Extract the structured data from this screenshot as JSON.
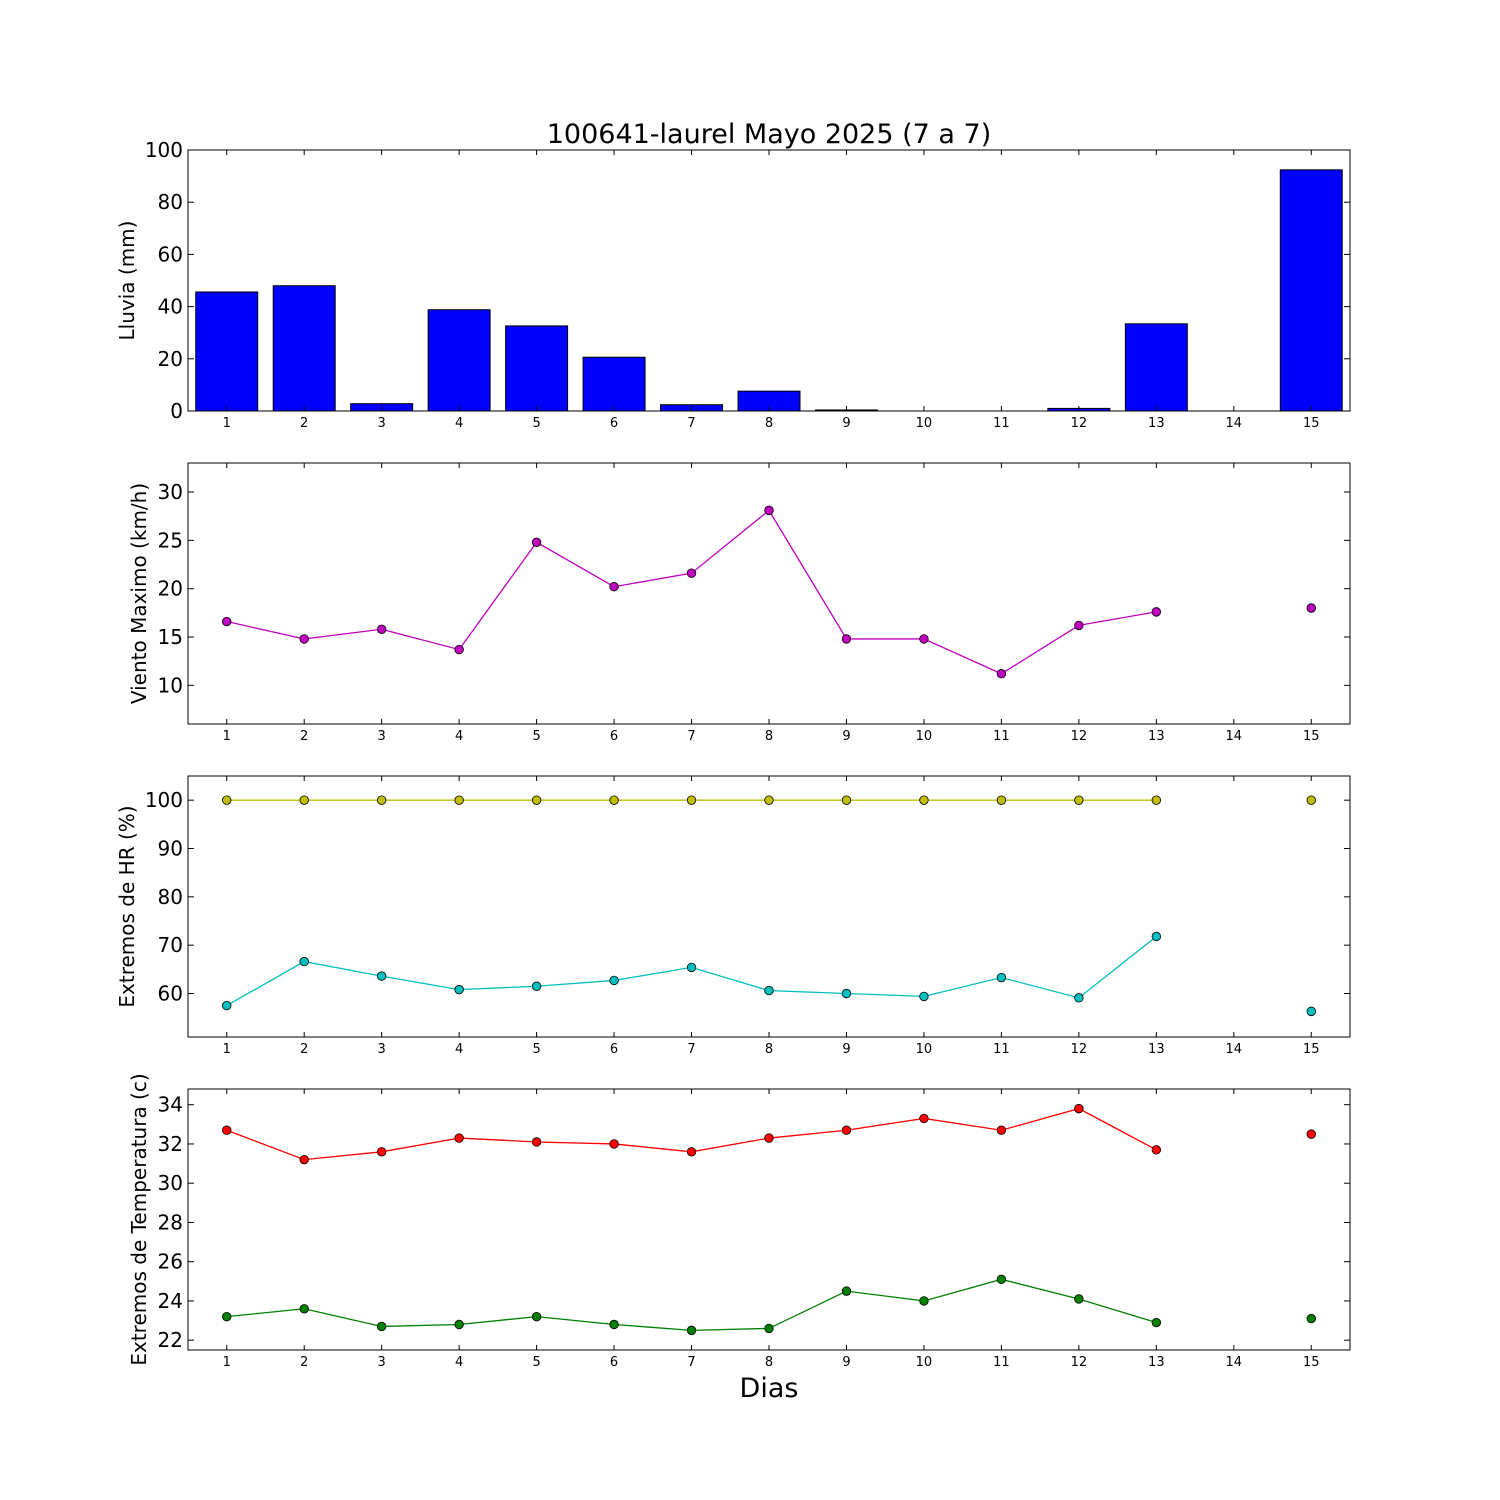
{
  "chart_data": {
    "title": "100641-laurel Mayo 2025  (7 a 7)",
    "xlabel": "Dias",
    "x": [
      1,
      2,
      3,
      4,
      5,
      6,
      7,
      8,
      9,
      10,
      11,
      12,
      13,
      14,
      15
    ],
    "panels": [
      {
        "type": "bar",
        "ylabel": "Lluvia (mm)",
        "ylim": [
          0,
          100
        ],
        "yticks": [
          0,
          20,
          40,
          60,
          80,
          100
        ],
        "series": [
          {
            "color": "#0000ff",
            "values": [
              45.6,
              48.0,
              2.8,
              38.8,
              32.6,
              20.6,
              2.4,
              7.6,
              0.4,
              0.0,
              0.0,
              1.0,
              33.4,
              0.0,
              92.4
            ]
          }
        ]
      },
      {
        "type": "line",
        "ylabel": "Viento Maximo (km/h)",
        "ylim": [
          6,
          33
        ],
        "yticks": [
          10,
          15,
          20,
          25,
          30
        ],
        "series": [
          {
            "color": "#bf00bf",
            "values": [
              16.6,
              14.8,
              15.8,
              13.7,
              24.8,
              20.2,
              21.6,
              28.1,
              14.8,
              14.8,
              11.2,
              16.2,
              17.6,
              null,
              18.0
            ]
          }
        ]
      },
      {
        "type": "line",
        "ylabel": "Extremos de HR (%)",
        "ylim": [
          51,
          105
        ],
        "yticks": [
          60,
          70,
          80,
          90,
          100
        ],
        "series": [
          {
            "color": "#bfbf00",
            "values": [
              100,
              100,
              100,
              100,
              100,
              100,
              100,
              100,
              100,
              100,
              100,
              100,
              100,
              null,
              100
            ]
          },
          {
            "color": "#00bfbf",
            "values": [
              57.5,
              66.6,
              63.6,
              60.8,
              61.5,
              62.7,
              65.4,
              60.6,
              60.0,
              59.4,
              63.3,
              59.1,
              71.8,
              null,
              56.3
            ]
          }
        ]
      },
      {
        "type": "line",
        "ylabel": "Extremos de Temperatura (c)",
        "ylim": [
          21.5,
          34.8
        ],
        "yticks": [
          22,
          24,
          26,
          28,
          30,
          32,
          34
        ],
        "series": [
          {
            "color": "#ff0000",
            "values": [
              32.7,
              31.2,
              31.6,
              32.3,
              32.1,
              32.0,
              31.6,
              32.3,
              32.7,
              33.3,
              32.7,
              33.8,
              31.7,
              null,
              32.5
            ]
          },
          {
            "color": "#008000",
            "values": [
              23.2,
              23.6,
              22.7,
              22.8,
              23.2,
              22.8,
              22.5,
              22.6,
              24.5,
              24.0,
              25.1,
              24.1,
              22.9,
              null,
              23.1
            ]
          }
        ]
      }
    ]
  }
}
